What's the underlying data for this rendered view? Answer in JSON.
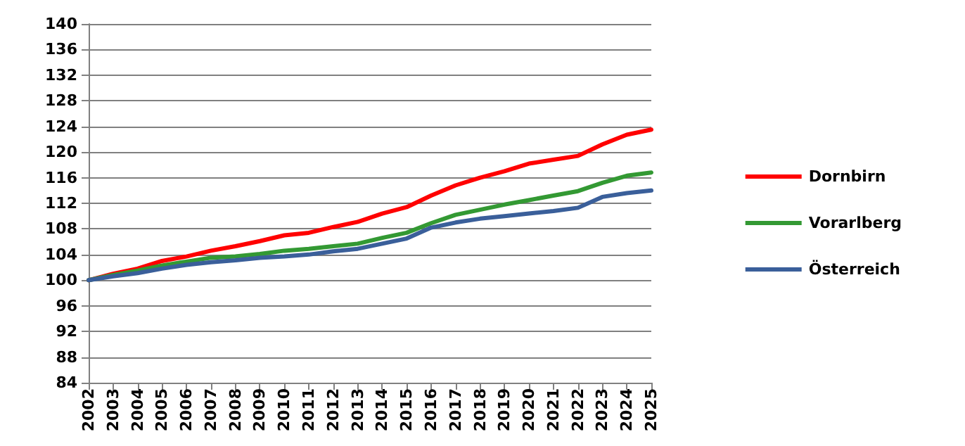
{
  "chart_data": {
    "type": "line",
    "categories": [
      "2002",
      "2003",
      "2004",
      "2005",
      "2006",
      "2007",
      "2008",
      "2009",
      "2010",
      "2011",
      "2012",
      "2013",
      "2014",
      "2015",
      "2016",
      "2017",
      "2018",
      "2019",
      "2020",
      "2021",
      "2022",
      "2023",
      "2024",
      "2025"
    ],
    "series": [
      {
        "name": "Dornbirn",
        "color": "#ff0000",
        "values": [
          100,
          101,
          101.8,
          103,
          103.7,
          104.6,
          105.3,
          106.1,
          107,
          107.4,
          108.3,
          109.1,
          110.4,
          111.4,
          113.2,
          114.8,
          116,
          117,
          118.2,
          118.8,
          119.4,
          121.2,
          122.7,
          123.5
        ]
      },
      {
        "name": "Vorarlberg",
        "color": "#339933",
        "values": [
          100,
          100.8,
          101.5,
          102.3,
          102.9,
          103.5,
          103.7,
          104.1,
          104.6,
          104.9,
          105.3,
          105.7,
          106.6,
          107.4,
          108.9,
          110.2,
          111,
          111.8,
          112.5,
          113.2,
          113.9,
          115.2,
          116.3,
          116.8
        ]
      },
      {
        "name": "Österreich",
        "color": "#3a5f9a",
        "values": [
          100,
          100.6,
          101.1,
          101.8,
          102.4,
          102.8,
          103.1,
          103.5,
          103.7,
          104,
          104.5,
          104.9,
          105.7,
          106.5,
          108.2,
          109,
          109.6,
          110,
          110.4,
          110.8,
          111.3,
          113,
          113.6,
          114
        ]
      }
    ],
    "ylim": [
      84,
      140
    ],
    "yticks": [
      84,
      88,
      92,
      96,
      100,
      104,
      108,
      112,
      116,
      120,
      124,
      128,
      132,
      136,
      140
    ],
    "grid": "y",
    "legend": "right",
    "marker": "none",
    "line_style": "solid"
  }
}
